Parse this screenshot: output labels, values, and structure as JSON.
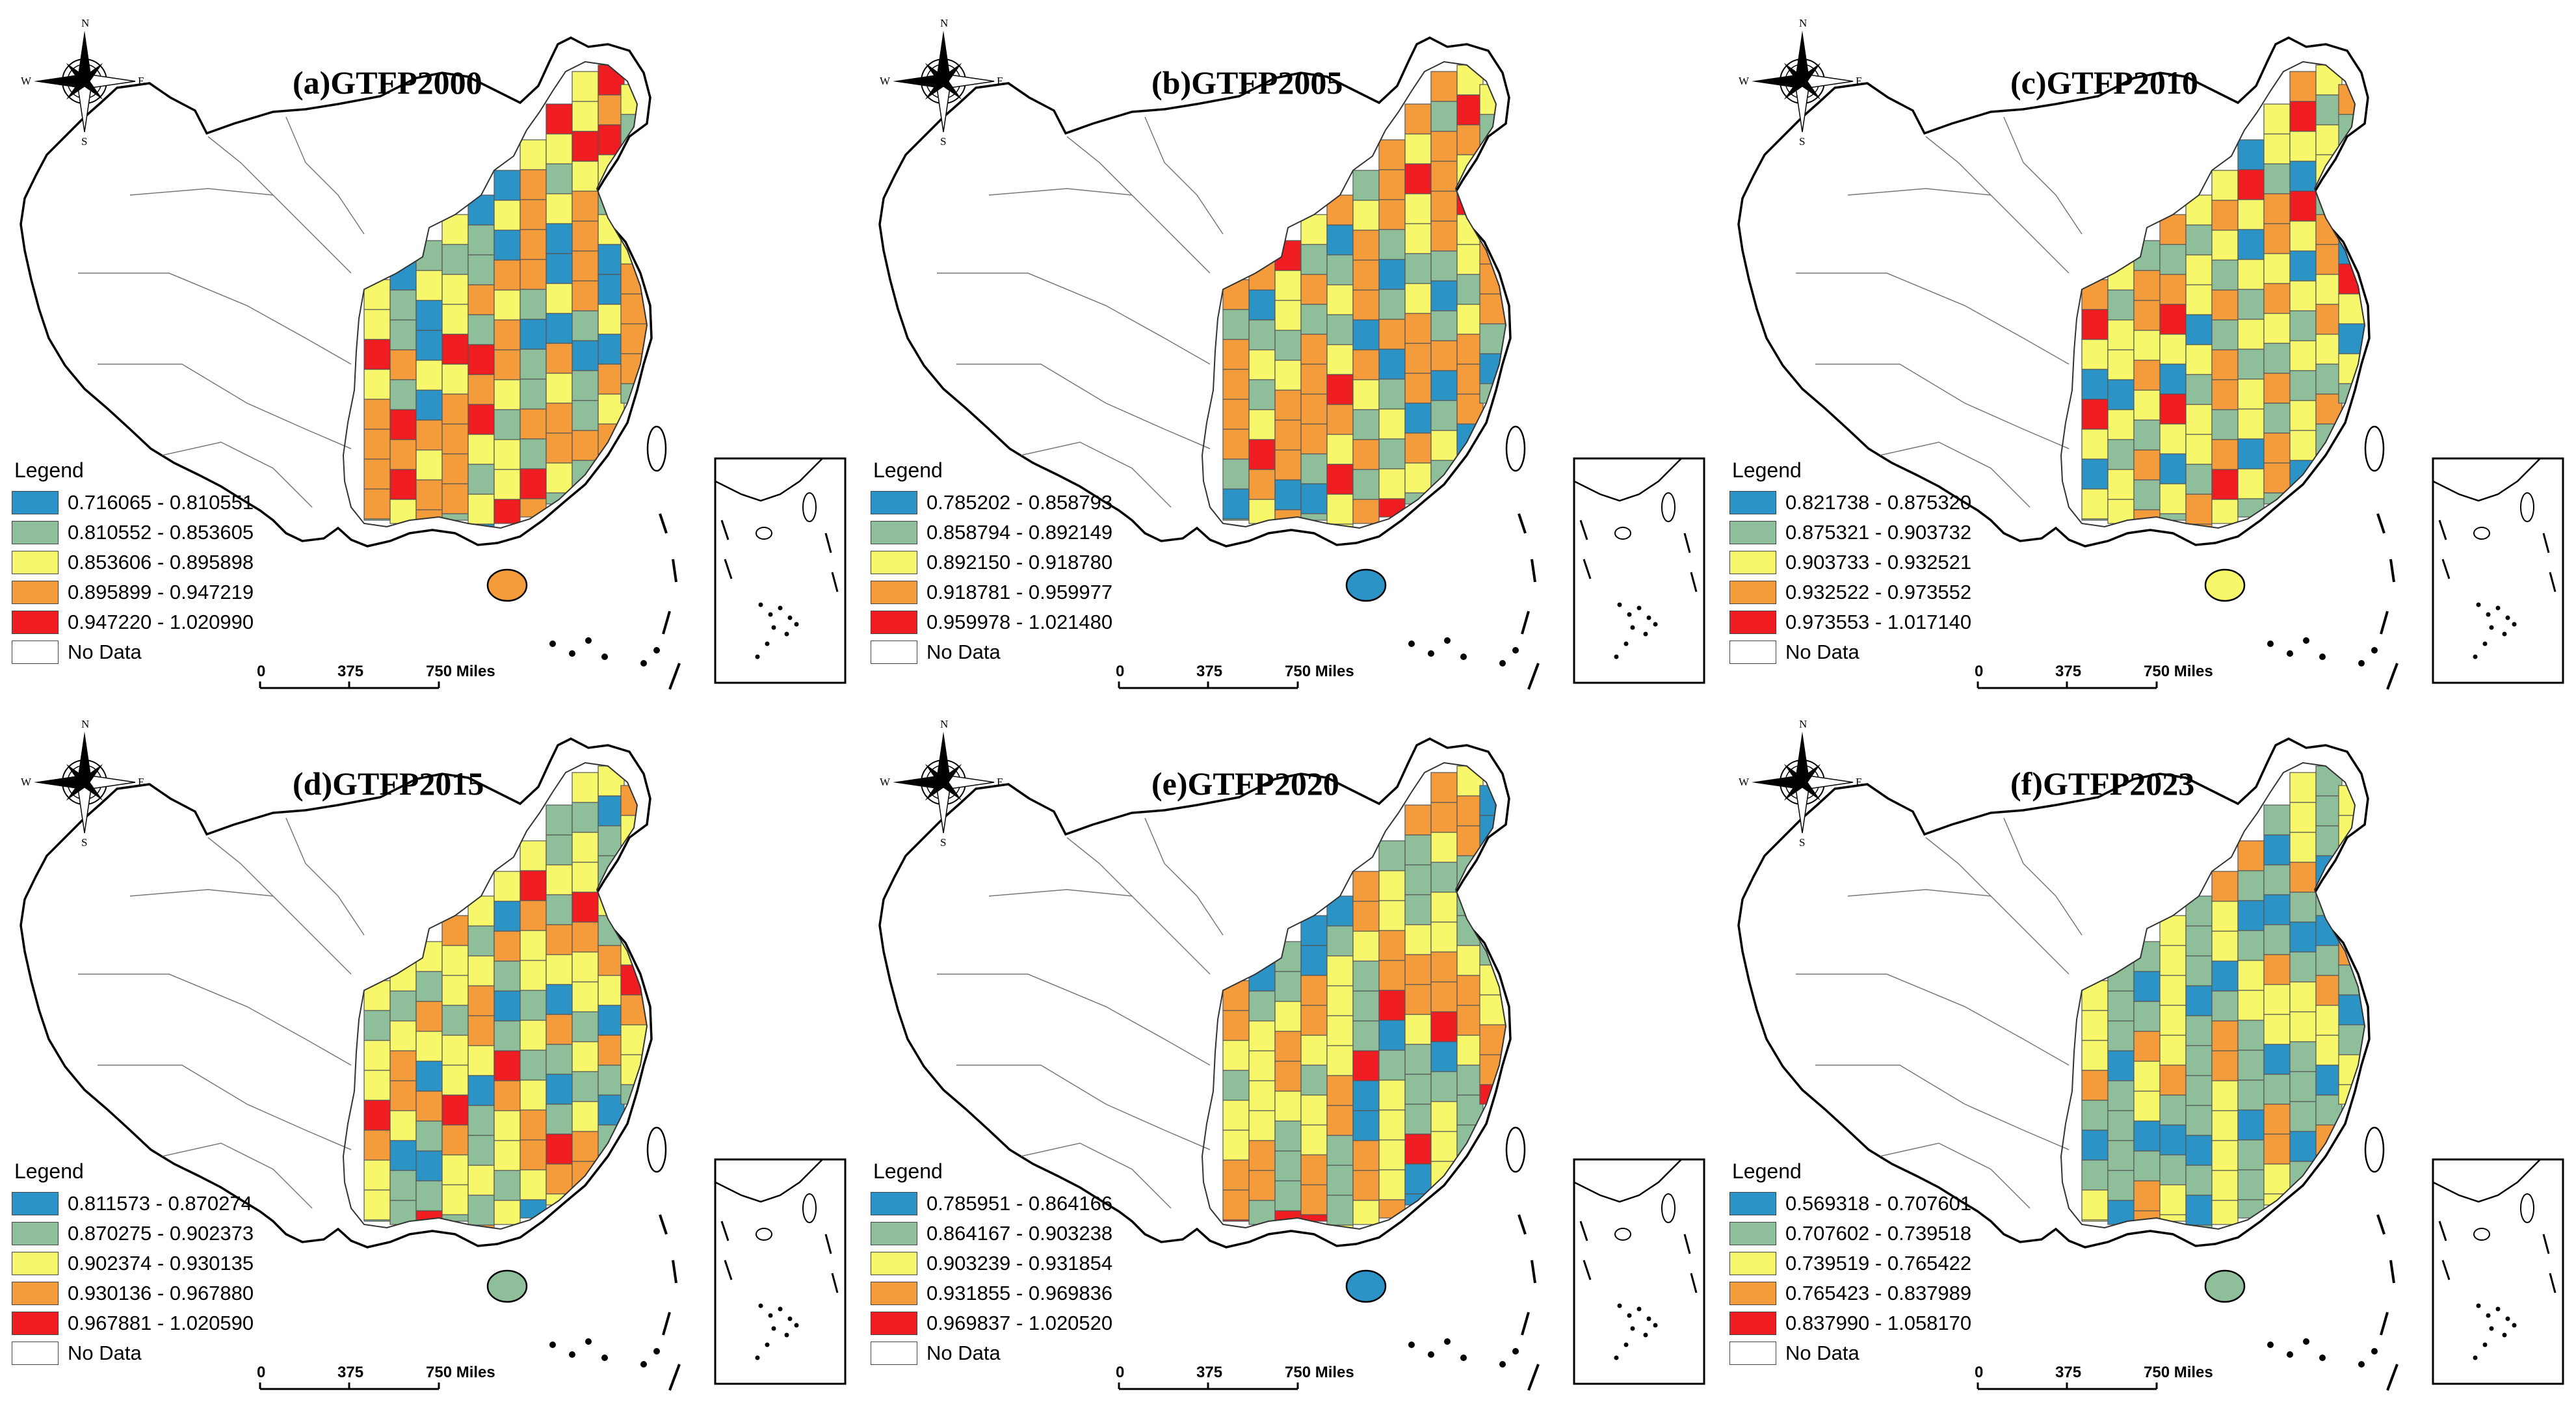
{
  "legend_heading": "Legend",
  "no_data_label": "No Data",
  "scale_labels": [
    "0",
    "375",
    "750 Miles"
  ],
  "compass": {
    "n": "N",
    "s": "S",
    "e": "E",
    "w": "W"
  },
  "colors": {
    "c1": "#2b93c6",
    "c2": "#8fbf9a",
    "c3": "#f6f76a",
    "c4": "#f49b3c",
    "c5": "#ef1d22",
    "nodata": "#ffffff"
  },
  "panels": [
    {
      "title": "(a)GTFP2000",
      "year": "2000",
      "pattern": [
        3,
        2,
        4,
        1,
        3,
        4,
        2,
        3,
        5,
        4,
        2,
        1,
        4,
        3,
        5,
        4,
        3,
        2,
        4,
        4,
        1,
        3,
        5,
        2,
        4,
        3,
        2,
        1,
        4,
        3
      ],
      "classes": [
        "0.716065 - 0.810551",
        "0.810552 - 0.853605",
        "0.853606 - 0.895898",
        "0.895899 - 0.947219",
        "0.947220 - 1.020990"
      ]
    },
    {
      "title": "(b)GTFP2005",
      "year": "2005",
      "pattern": [
        2,
        4,
        3,
        4,
        2,
        1,
        4,
        3,
        4,
        5,
        2,
        3,
        4,
        1,
        4,
        2,
        3,
        4,
        5,
        3,
        2,
        4,
        1,
        3,
        4,
        4,
        2,
        3,
        4,
        2
      ],
      "classes": [
        "0.785202 - 0.858793",
        "0.858794 - 0.892149",
        "0.892150 - 0.918780",
        "0.918781 - 0.959977",
        "0.959978 - 1.021480"
      ]
    },
    {
      "title": "(c)GTFP2010",
      "year": "2010",
      "pattern": [
        3,
        4,
        2,
        3,
        5,
        3,
        4,
        1,
        2,
        3,
        4,
        3,
        2,
        5,
        3,
        4,
        2,
        3,
        1,
        4,
        3,
        2,
        4,
        3,
        2,
        3,
        4,
        1,
        3,
        2
      ],
      "classes": [
        "0.821738 - 0.875320",
        "0.875321 - 0.903732",
        "0.903733 - 0.932521",
        "0.932522 - 0.973552",
        "0.973553 - 1.017140"
      ]
    },
    {
      "title": "(d)GTFP2015",
      "year": "2015",
      "pattern": [
        3,
        2,
        3,
        4,
        1,
        2,
        3,
        5,
        2,
        3,
        4,
        2,
        3,
        1,
        4,
        3,
        2,
        3,
        5,
        2,
        4,
        3,
        2,
        3,
        1,
        4,
        3,
        2,
        3,
        4
      ],
      "classes": [
        "0.811573 - 0.870274",
        "0.870275 - 0.902373",
        "0.902374 - 0.930135",
        "0.930136 - 0.967880",
        "0.967881 - 1.020590"
      ]
    },
    {
      "title": "(e)GTFP2020",
      "year": "2020",
      "pattern": [
        2,
        4,
        3,
        2,
        4,
        1,
        3,
        2,
        5,
        4,
        3,
        2,
        4,
        3,
        2,
        1,
        4,
        3,
        2,
        4,
        3,
        5,
        2,
        3,
        4,
        2,
        3,
        4,
        1,
        3
      ],
      "classes": [
        "0.785951 - 0.864166",
        "0.864167 - 0.903238",
        "0.903239 - 0.931854",
        "0.931855 - 0.969836",
        "0.969837 - 1.020520"
      ]
    },
    {
      "title": "(f)GTFP2023",
      "year": "2023",
      "pattern": [
        2,
        3,
        2,
        1,
        3,
        2,
        4,
        2,
        3,
        1,
        2,
        3,
        4,
        2,
        1,
        3,
        2,
        4,
        2,
        3,
        1,
        2,
        3,
        2,
        4,
        2,
        3,
        2,
        1,
        3
      ],
      "classes": [
        "0.569318 - 0.707601",
        "0.707602 - 0.739518",
        "0.739519 - 0.765422",
        "0.765423 - 0.837989",
        "0.837990 - 1.058170"
      ]
    }
  ]
}
